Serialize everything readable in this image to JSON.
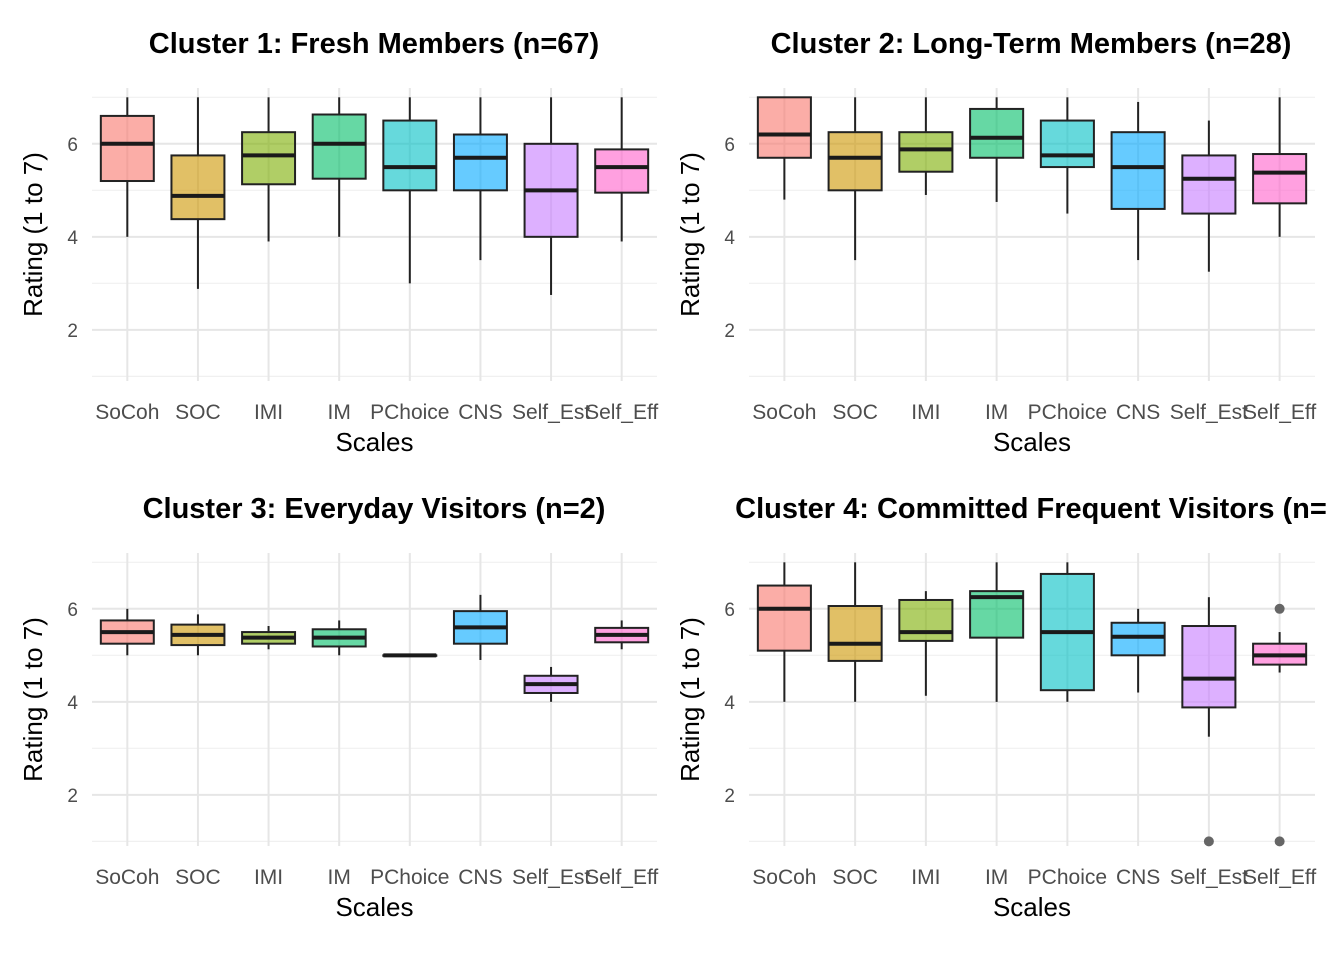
{
  "chart_data": [
    {
      "type": "box",
      "title": "Cluster 1: Fresh Members (n=67)",
      "xlabel": "Scales",
      "ylabel": "Rating (1 to 7)",
      "categories": [
        "SoCoh",
        "SOC",
        "IMI",
        "IM",
        "PChoice",
        "CNS",
        "Self_Est",
        "Self_Eff"
      ],
      "yticks": [
        2,
        4,
        6
      ],
      "ylim": [
        0.9,
        7.2
      ],
      "grid": true,
      "boxes": [
        {
          "min": 4.0,
          "q1": 5.2,
          "median": 6.0,
          "q3": 6.6,
          "max": 7.0,
          "outliers": []
        },
        {
          "min": 2.88,
          "q1": 4.38,
          "median": 4.88,
          "q3": 5.75,
          "max": 7.0,
          "outliers": []
        },
        {
          "min": 3.9,
          "q1": 5.13,
          "median": 5.75,
          "q3": 6.25,
          "max": 7.0,
          "outliers": []
        },
        {
          "min": 4.0,
          "q1": 5.25,
          "median": 6.0,
          "q3": 6.63,
          "max": 7.0,
          "outliers": []
        },
        {
          "min": 3.0,
          "q1": 5.0,
          "median": 5.5,
          "q3": 6.5,
          "max": 7.0,
          "outliers": []
        },
        {
          "min": 3.5,
          "q1": 5.0,
          "median": 5.7,
          "q3": 6.2,
          "max": 7.0,
          "outliers": []
        },
        {
          "min": 2.75,
          "q1": 4.0,
          "median": 5.0,
          "q3": 6.0,
          "max": 7.0,
          "outliers": []
        },
        {
          "min": 3.9,
          "q1": 4.95,
          "median": 5.5,
          "q3": 5.88,
          "max": 7.0,
          "outliers": []
        }
      ]
    },
    {
      "type": "box",
      "title": "Cluster 2: Long-Term Members (n=28)",
      "xlabel": "Scales",
      "ylabel": "Rating (1 to 7)",
      "categories": [
        "SoCoh",
        "SOC",
        "IMI",
        "IM",
        "PChoice",
        "CNS",
        "Self_Est",
        "Self_Eff"
      ],
      "yticks": [
        2,
        4,
        6
      ],
      "ylim": [
        0.9,
        7.2
      ],
      "grid": true,
      "boxes": [
        {
          "min": 4.8,
          "q1": 5.7,
          "median": 6.2,
          "q3": 7.0,
          "max": 7.0,
          "outliers": []
        },
        {
          "min": 3.5,
          "q1": 5.0,
          "median": 5.7,
          "q3": 6.25,
          "max": 7.0,
          "outliers": []
        },
        {
          "min": 4.9,
          "q1": 5.4,
          "median": 5.88,
          "q3": 6.25,
          "max": 7.0,
          "outliers": []
        },
        {
          "min": 4.75,
          "q1": 5.7,
          "median": 6.13,
          "q3": 6.75,
          "max": 7.0,
          "outliers": []
        },
        {
          "min": 4.5,
          "q1": 5.5,
          "median": 5.75,
          "q3": 6.5,
          "max": 7.0,
          "outliers": []
        },
        {
          "min": 3.5,
          "q1": 4.6,
          "median": 5.5,
          "q3": 6.25,
          "max": 6.9,
          "outliers": []
        },
        {
          "min": 3.25,
          "q1": 4.5,
          "median": 5.25,
          "q3": 5.75,
          "max": 6.5,
          "outliers": []
        },
        {
          "min": 4.0,
          "q1": 4.72,
          "median": 5.38,
          "q3": 5.78,
          "max": 7.0,
          "outliers": []
        }
      ]
    },
    {
      "type": "box",
      "title": "Cluster 3: Everyday Visitors (n=2)",
      "xlabel": "Scales",
      "ylabel": "Rating (1 to 7)",
      "categories": [
        "SoCoh",
        "SOC",
        "IMI",
        "IM",
        "PChoice",
        "CNS",
        "Self_Est",
        "Self_Eff"
      ],
      "yticks": [
        2,
        4,
        6
      ],
      "ylim": [
        0.9,
        7.2
      ],
      "grid": true,
      "boxes": [
        {
          "min": 5.0,
          "q1": 5.25,
          "median": 5.5,
          "q3": 5.75,
          "max": 6.0,
          "outliers": []
        },
        {
          "min": 5.0,
          "q1": 5.22,
          "median": 5.44,
          "q3": 5.66,
          "max": 5.88,
          "outliers": []
        },
        {
          "min": 5.13,
          "q1": 5.25,
          "median": 5.38,
          "q3": 5.5,
          "max": 5.63,
          "outliers": []
        },
        {
          "min": 5.0,
          "q1": 5.19,
          "median": 5.38,
          "q3": 5.56,
          "max": 5.75,
          "outliers": []
        },
        {
          "min": 5.0,
          "q1": 5.0,
          "median": 5.0,
          "q3": 5.0,
          "max": 5.0,
          "outliers": []
        },
        {
          "min": 4.9,
          "q1": 5.25,
          "median": 5.6,
          "q3": 5.95,
          "max": 6.3,
          "outliers": []
        },
        {
          "min": 4.0,
          "q1": 4.19,
          "median": 4.38,
          "q3": 4.56,
          "max": 4.75,
          "outliers": []
        },
        {
          "min": 5.13,
          "q1": 5.28,
          "median": 5.44,
          "q3": 5.59,
          "max": 5.75,
          "outliers": []
        }
      ]
    },
    {
      "type": "box",
      "title": "Cluster 4: Committed Frequent Visitors (n=",
      "xlabel": "Scales",
      "ylabel": "Rating (1 to 7)",
      "categories": [
        "SoCoh",
        "SOC",
        "IMI",
        "IM",
        "PChoice",
        "CNS",
        "Self_Est",
        "Self_Eff"
      ],
      "yticks": [
        2,
        4,
        6
      ],
      "ylim": [
        0.9,
        7.2
      ],
      "grid": true,
      "boxes": [
        {
          "min": 4.0,
          "q1": 5.1,
          "median": 6.0,
          "q3": 6.5,
          "max": 7.0,
          "outliers": []
        },
        {
          "min": 4.0,
          "q1": 4.88,
          "median": 5.25,
          "q3": 6.06,
          "max": 7.0,
          "outliers": []
        },
        {
          "min": 4.13,
          "q1": 5.31,
          "median": 5.5,
          "q3": 6.19,
          "max": 6.38,
          "outliers": []
        },
        {
          "min": 4.0,
          "q1": 5.38,
          "median": 6.25,
          "q3": 6.38,
          "max": 7.0,
          "outliers": []
        },
        {
          "min": 4.0,
          "q1": 4.25,
          "median": 5.5,
          "q3": 6.75,
          "max": 7.0,
          "outliers": []
        },
        {
          "min": 4.2,
          "q1": 5.0,
          "median": 5.4,
          "q3": 5.7,
          "max": 6.0,
          "outliers": []
        },
        {
          "min": 3.25,
          "q1": 3.88,
          "median": 4.5,
          "q3": 5.63,
          "max": 6.25,
          "outliers": [
            1.0
          ]
        },
        {
          "min": 4.63,
          "q1": 4.8,
          "median": 5.0,
          "q3": 5.25,
          "max": 5.5,
          "outliers": [
            6.0,
            1.0
          ]
        }
      ]
    }
  ],
  "colors": [
    "#F8766D",
    "#CD9600",
    "#7CAE00",
    "#00BE67",
    "#00BFC4",
    "#00A9FF",
    "#C77CFF",
    "#FF61CC"
  ]
}
